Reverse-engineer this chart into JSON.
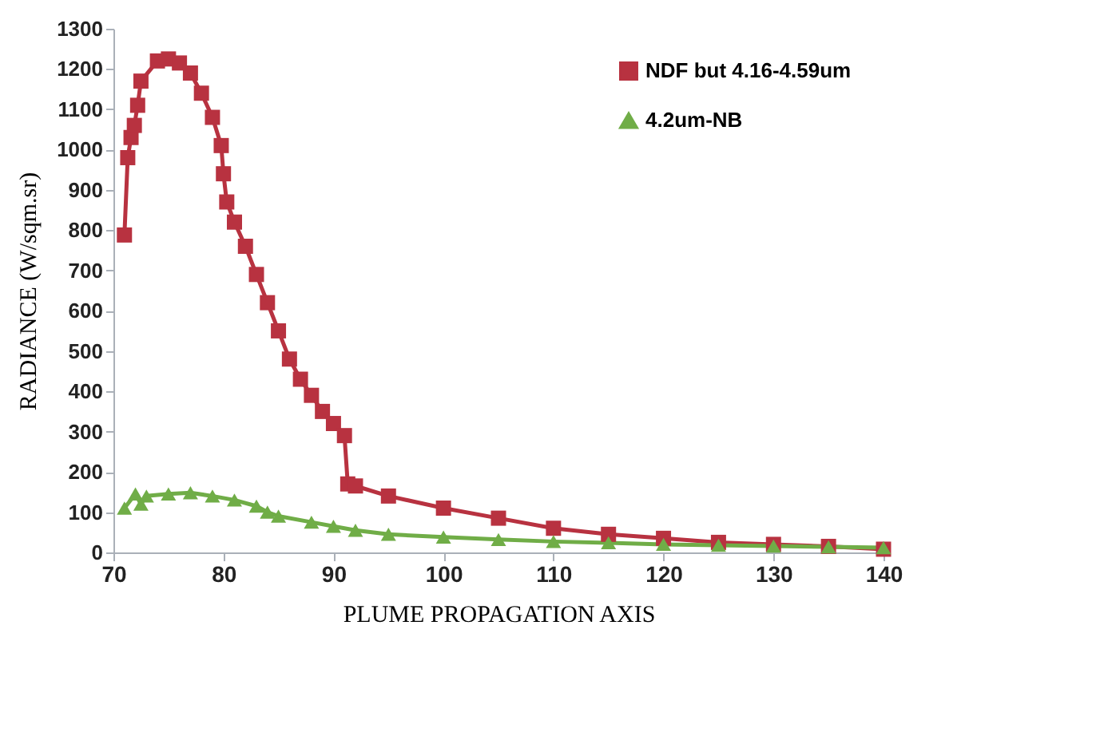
{
  "chart_data": {
    "type": "line",
    "xlabel": "PLUME PROPAGATION AXIS",
    "ylabel": "RADIANCE  (W/sqm.sr)",
    "xlim": [
      70,
      140
    ],
    "xticks": [
      70,
      80,
      90,
      100,
      110,
      120,
      130,
      140
    ],
    "ylim": [
      0,
      1300
    ],
    "yticks": [
      0,
      100,
      200,
      300,
      400,
      500,
      600,
      700,
      800,
      900,
      1000,
      1100,
      1200,
      1300
    ],
    "grid": false,
    "legend": "top right",
    "series": [
      {
        "name": "NDF but 4.16-4.59um",
        "color": "#b83240",
        "marker": "square",
        "x": [
          71,
          71.3,
          71.6,
          71.9,
          72.2,
          72.5,
          74,
          75,
          76,
          77,
          78,
          79,
          79.8,
          80,
          80.3,
          81,
          82,
          83,
          84,
          85,
          86,
          87,
          88,
          89,
          90,
          91,
          91.3,
          92,
          95,
          100,
          105,
          110,
          115,
          120,
          125,
          130,
          135,
          140
        ],
        "values": [
          788,
          980,
          1030,
          1060,
          1110,
          1170,
          1220,
          1225,
          1215,
          1190,
          1140,
          1080,
          1010,
          940,
          870,
          820,
          760,
          690,
          620,
          550,
          480,
          430,
          390,
          350,
          320,
          290,
          170,
          165,
          140,
          110,
          85,
          60,
          45,
          35,
          25,
          20,
          15,
          8
        ]
      },
      {
        "name": "4.2um-NB",
        "color": "#70ad47",
        "marker": "triangle",
        "x": [
          71,
          72,
          72.5,
          73,
          75,
          77,
          79,
          81,
          83,
          84,
          85,
          88,
          90,
          92,
          95,
          100,
          105,
          110,
          115,
          120,
          125,
          130,
          135,
          140
        ],
        "values": [
          110,
          145,
          120,
          140,
          145,
          148,
          140,
          130,
          115,
          100,
          90,
          75,
          65,
          55,
          45,
          38,
          32,
          27,
          24,
          20,
          18,
          16,
          14,
          12
        ]
      }
    ]
  }
}
